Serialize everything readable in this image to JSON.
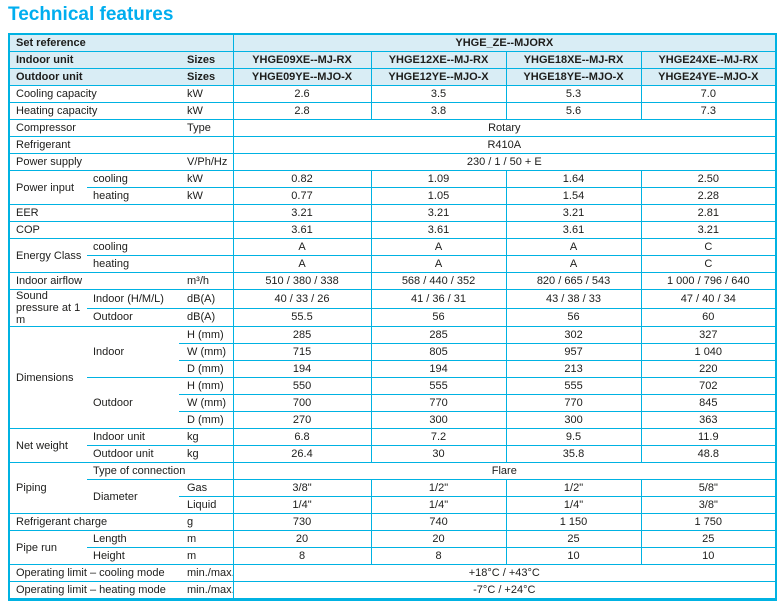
{
  "page_title": "Technical features",
  "colors": {
    "accent": "#00b2e2",
    "header_bg": "#d9edf5",
    "title": "#00aeef",
    "text": "#1d1d1b"
  },
  "table": {
    "rows": [
      {
        "hdr": true,
        "cells": [
          {
            "t": "Set reference",
            "c": "label",
            "cs": 3
          },
          {
            "t": "YHGE_ZE--MJORX",
            "c": "data",
            "cs": 4
          }
        ]
      },
      {
        "hdr": true,
        "cells": [
          {
            "t": "Indoor unit",
            "c": "label",
            "cs": 2
          },
          {
            "t": "Sizes",
            "c": "unit"
          },
          {
            "t": "YHGE09XE--MJ-RX",
            "c": "data"
          },
          {
            "t": "YHGE12XE--MJ-RX",
            "c": "data"
          },
          {
            "t": "YHGE18XE--MJ-RX",
            "c": "data"
          },
          {
            "t": "YHGE24XE--MJ-RX",
            "c": "data"
          }
        ]
      },
      {
        "hdr": true,
        "cells": [
          {
            "t": "Outdoor unit",
            "c": "label",
            "cs": 2
          },
          {
            "t": "Sizes",
            "c": "unit"
          },
          {
            "t": "YHGE09YE--MJO-X",
            "c": "data"
          },
          {
            "t": "YHGE12YE--MJO-X",
            "c": "data"
          },
          {
            "t": "YHGE18YE--MJO-X",
            "c": "data"
          },
          {
            "t": "YHGE24YE--MJO-X",
            "c": "data"
          }
        ]
      },
      {
        "cells": [
          {
            "t": "Cooling capacity",
            "c": "label",
            "cs": 2
          },
          {
            "t": "kW",
            "c": "unit"
          },
          {
            "t": "2.6",
            "c": "data"
          },
          {
            "t": "3.5",
            "c": "data"
          },
          {
            "t": "5.3",
            "c": "data"
          },
          {
            "t": "7.0",
            "c": "data"
          }
        ]
      },
      {
        "cells": [
          {
            "t": "Heating capacity",
            "c": "label",
            "cs": 2
          },
          {
            "t": "kW",
            "c": "unit"
          },
          {
            "t": "2.8",
            "c": "data"
          },
          {
            "t": "3.8",
            "c": "data"
          },
          {
            "t": "5.6",
            "c": "data"
          },
          {
            "t": "7.3",
            "c": "data"
          }
        ]
      },
      {
        "cells": [
          {
            "t": "Compressor",
            "c": "label",
            "cs": 2
          },
          {
            "t": "Type",
            "c": "unit"
          },
          {
            "t": "Rotary",
            "c": "data",
            "cs": 4
          }
        ]
      },
      {
        "cells": [
          {
            "t": "Refrigerant",
            "c": "label",
            "cs": 3
          },
          {
            "t": "R410A",
            "c": "data",
            "cs": 4
          }
        ]
      },
      {
        "cells": [
          {
            "t": "Power supply",
            "c": "label",
            "cs": 2
          },
          {
            "t": "V/Ph/Hz",
            "c": "unit"
          },
          {
            "t": "230 / 1 / 50 + E",
            "c": "data",
            "cs": 4
          }
        ]
      },
      {
        "cells": [
          {
            "t": "Power input",
            "c": "label",
            "rs": 2
          },
          {
            "t": "cooling",
            "c": "label"
          },
          {
            "t": "kW",
            "c": "unit"
          },
          {
            "t": "0.82",
            "c": "data"
          },
          {
            "t": "1.09",
            "c": "data"
          },
          {
            "t": "1.64",
            "c": "data"
          },
          {
            "t": "2.50",
            "c": "data"
          }
        ]
      },
      {
        "cells": [
          {
            "t": "heating",
            "c": "label"
          },
          {
            "t": "kW",
            "c": "unit"
          },
          {
            "t": "0.77",
            "c": "data"
          },
          {
            "t": "1.05",
            "c": "data"
          },
          {
            "t": "1.54",
            "c": "data"
          },
          {
            "t": "2.28",
            "c": "data"
          }
        ]
      },
      {
        "cells": [
          {
            "t": "EER",
            "c": "label",
            "cs": 3
          },
          {
            "t": "3.21",
            "c": "data"
          },
          {
            "t": "3.21",
            "c": "data"
          },
          {
            "t": "3.21",
            "c": "data"
          },
          {
            "t": "2.81",
            "c": "data"
          }
        ]
      },
      {
        "cells": [
          {
            "t": "COP",
            "c": "label",
            "cs": 3
          },
          {
            "t": "3.61",
            "c": "data"
          },
          {
            "t": "3.61",
            "c": "data"
          },
          {
            "t": "3.61",
            "c": "data"
          },
          {
            "t": "3.21",
            "c": "data"
          }
        ]
      },
      {
        "cells": [
          {
            "t": "Energy Class",
            "c": "label",
            "rs": 2
          },
          {
            "t": "cooling",
            "c": "label",
            "cs": 2
          },
          {
            "t": "A",
            "c": "data"
          },
          {
            "t": "A",
            "c": "data"
          },
          {
            "t": "A",
            "c": "data"
          },
          {
            "t": "C",
            "c": "data"
          }
        ]
      },
      {
        "cells": [
          {
            "t": "heating",
            "c": "label",
            "cs": 2
          },
          {
            "t": "A",
            "c": "data"
          },
          {
            "t": "A",
            "c": "data"
          },
          {
            "t": "A",
            "c": "data"
          },
          {
            "t": "C",
            "c": "data"
          }
        ]
      },
      {
        "cells": [
          {
            "t": "Indoor airflow",
            "c": "label",
            "cs": 2
          },
          {
            "t": "m³/h",
            "c": "unit"
          },
          {
            "t": "510 / 380 / 338",
            "c": "data"
          },
          {
            "t": "568 / 440 / 352",
            "c": "data"
          },
          {
            "t": "820 / 665 / 543",
            "c": "data"
          },
          {
            "t": "1 000 / 796 / 640",
            "c": "data"
          }
        ]
      },
      {
        "cells": [
          {
            "t": "Sound pressure at 1 m",
            "c": "label",
            "rs": 2
          },
          {
            "t": "Indoor (H/M/L)",
            "c": "label"
          },
          {
            "t": "dB(A)",
            "c": "unit"
          },
          {
            "t": "40 / 33 / 26",
            "c": "data"
          },
          {
            "t": "41 / 36 / 31",
            "c": "data"
          },
          {
            "t": "43 / 38 / 33",
            "c": "data"
          },
          {
            "t": "47 / 40 / 34",
            "c": "data"
          }
        ]
      },
      {
        "cells": [
          {
            "t": "Outdoor",
            "c": "label"
          },
          {
            "t": "dB(A)",
            "c": "unit"
          },
          {
            "t": "55.5",
            "c": "data"
          },
          {
            "t": "56",
            "c": "data"
          },
          {
            "t": "56",
            "c": "data"
          },
          {
            "t": "60",
            "c": "data"
          }
        ]
      },
      {
        "cells": [
          {
            "t": "Dimensions",
            "c": "label",
            "rs": 6
          },
          {
            "t": "Indoor",
            "c": "label",
            "rs": 3
          },
          {
            "t": "H (mm)",
            "c": "unit"
          },
          {
            "t": "285",
            "c": "data"
          },
          {
            "t": "285",
            "c": "data"
          },
          {
            "t": "302",
            "c": "data"
          },
          {
            "t": "327",
            "c": "data"
          }
        ]
      },
      {
        "cells": [
          {
            "t": "W (mm)",
            "c": "unit"
          },
          {
            "t": "715",
            "c": "data"
          },
          {
            "t": "805",
            "c": "data"
          },
          {
            "t": "957",
            "c": "data"
          },
          {
            "t": "1 040",
            "c": "data"
          }
        ]
      },
      {
        "cells": [
          {
            "t": "D (mm)",
            "c": "unit"
          },
          {
            "t": "194",
            "c": "data"
          },
          {
            "t": "194",
            "c": "data"
          },
          {
            "t": "213",
            "c": "data"
          },
          {
            "t": "220",
            "c": "data"
          }
        ]
      },
      {
        "cells": [
          {
            "t": "Outdoor",
            "c": "label",
            "rs": 3
          },
          {
            "t": "H (mm)",
            "c": "unit"
          },
          {
            "t": "550",
            "c": "data"
          },
          {
            "t": "555",
            "c": "data"
          },
          {
            "t": "555",
            "c": "data"
          },
          {
            "t": "702",
            "c": "data"
          }
        ]
      },
      {
        "cells": [
          {
            "t": "W (mm)",
            "c": "unit"
          },
          {
            "t": "700",
            "c": "data"
          },
          {
            "t": "770",
            "c": "data"
          },
          {
            "t": "770",
            "c": "data"
          },
          {
            "t": "845",
            "c": "data"
          }
        ]
      },
      {
        "cells": [
          {
            "t": "D (mm)",
            "c": "unit"
          },
          {
            "t": "270",
            "c": "data"
          },
          {
            "t": "300",
            "c": "data"
          },
          {
            "t": "300",
            "c": "data"
          },
          {
            "t": "363",
            "c": "data"
          }
        ]
      },
      {
        "cells": [
          {
            "t": "Net weight",
            "c": "label",
            "rs": 2
          },
          {
            "t": "Indoor unit",
            "c": "label"
          },
          {
            "t": "kg",
            "c": "unit"
          },
          {
            "t": "6.8",
            "c": "data"
          },
          {
            "t": "7.2",
            "c": "data"
          },
          {
            "t": "9.5",
            "c": "data"
          },
          {
            "t": "11.9",
            "c": "data"
          }
        ]
      },
      {
        "cells": [
          {
            "t": "Outdoor unit",
            "c": "label"
          },
          {
            "t": "kg",
            "c": "unit"
          },
          {
            "t": "26.4",
            "c": "data"
          },
          {
            "t": "30",
            "c": "data"
          },
          {
            "t": "35.8",
            "c": "data"
          },
          {
            "t": "48.8",
            "c": "data"
          }
        ]
      },
      {
        "cells": [
          {
            "t": "Piping",
            "c": "label",
            "rs": 3
          },
          {
            "t": "Type of connection",
            "c": "label",
            "cs": 2
          },
          {
            "t": "Flare",
            "c": "data",
            "cs": 4
          }
        ]
      },
      {
        "cells": [
          {
            "t": "Diameter",
            "c": "label",
            "rs": 2
          },
          {
            "t": "Gas",
            "c": "unit"
          },
          {
            "t": "3/8\"",
            "c": "data"
          },
          {
            "t": "1/2\"",
            "c": "data"
          },
          {
            "t": "1/2\"",
            "c": "data"
          },
          {
            "t": "5/8\"",
            "c": "data"
          }
        ]
      },
      {
        "cells": [
          {
            "t": "Liquid",
            "c": "unit"
          },
          {
            "t": "1/4\"",
            "c": "data"
          },
          {
            "t": "1/4\"",
            "c": "data"
          },
          {
            "t": "1/4\"",
            "c": "data"
          },
          {
            "t": "3/8\"",
            "c": "data"
          }
        ]
      },
      {
        "cells": [
          {
            "t": "Refrigerant charge",
            "c": "label",
            "cs": 2
          },
          {
            "t": "g",
            "c": "unit"
          },
          {
            "t": "730",
            "c": "data"
          },
          {
            "t": "740",
            "c": "data"
          },
          {
            "t": "1 150",
            "c": "data"
          },
          {
            "t": "1 750",
            "c": "data"
          }
        ]
      },
      {
        "cells": [
          {
            "t": "Pipe run",
            "c": "label",
            "rs": 2
          },
          {
            "t": "Length",
            "c": "label"
          },
          {
            "t": "m",
            "c": "unit"
          },
          {
            "t": "20",
            "c": "data"
          },
          {
            "t": "20",
            "c": "data"
          },
          {
            "t": "25",
            "c": "data"
          },
          {
            "t": "25",
            "c": "data"
          }
        ]
      },
      {
        "cells": [
          {
            "t": "Height",
            "c": "label"
          },
          {
            "t": "m",
            "c": "unit"
          },
          {
            "t": "8",
            "c": "data"
          },
          {
            "t": "8",
            "c": "data"
          },
          {
            "t": "10",
            "c": "data"
          },
          {
            "t": "10",
            "c": "data"
          }
        ]
      },
      {
        "cells": [
          {
            "t": "Operating limit – cooling mode",
            "c": "label",
            "cs": 2
          },
          {
            "t": "min./max.",
            "c": "unit"
          },
          {
            "t": "+18°C / +43°C",
            "c": "data",
            "cs": 4
          }
        ]
      },
      {
        "cells": [
          {
            "t": "Operating limit – heating mode",
            "c": "label",
            "cs": 2
          },
          {
            "t": "min./max.",
            "c": "unit"
          },
          {
            "t": "-7°C / +24°C",
            "c": "data",
            "cs": 4
          }
        ]
      }
    ]
  }
}
